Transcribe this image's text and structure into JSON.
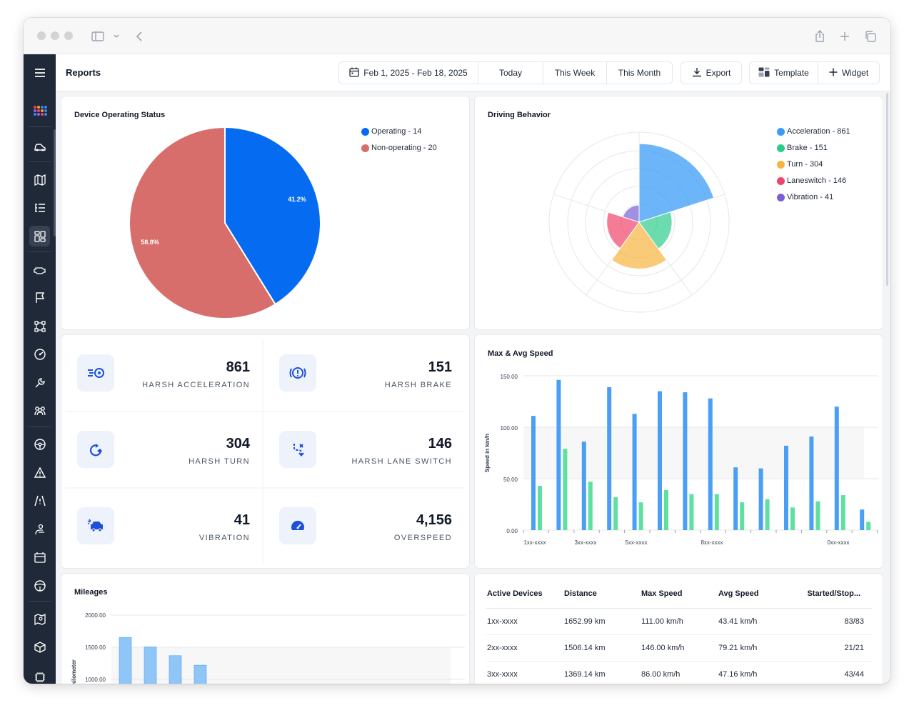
{
  "header": {
    "title": "Reports",
    "date_range": "Feb 1, 2025 - Feb 18, 2025",
    "today": "Today",
    "this_week": "This Week",
    "this_month": "This Month",
    "export": "Export",
    "template": "Template",
    "widget": "Widget"
  },
  "sidebar": {
    "items": [
      "menu-icon",
      "logo-icon",
      "vehicle-crash-icon",
      "map-icon",
      "list-tree-icon",
      "dashboard-icon",
      "engine-icon",
      "flag-icon",
      "route-icon",
      "speedometer-icon",
      "wrench-icon",
      "users-icon",
      "steering-wheel-icon",
      "warning-icon",
      "road-warning-icon",
      "driver-icon",
      "calendar-icon",
      "steering-icon",
      "map-pin-icon",
      "box-icon",
      "chip-icon"
    ]
  },
  "device_status": {
    "title": "Device Operating Status",
    "legend": [
      {
        "label": "Operating - 14",
        "color": "#056cf2"
      },
      {
        "label": "Non-operating - 20",
        "color": "#d86e6b"
      }
    ],
    "slice_labels": [
      "41.2%",
      "58.8%"
    ]
  },
  "driving_behavior": {
    "title": "Driving Behavior",
    "legend": [
      {
        "label": "Acceleration - 861",
        "color": "#3b9cf5"
      },
      {
        "label": "Brake - 151",
        "color": "#2ecc8a"
      },
      {
        "label": "Turn - 304",
        "color": "#f7b53f"
      },
      {
        "label": "Laneswitch - 146",
        "color": "#f0456a"
      },
      {
        "label": "Vibration - 41",
        "color": "#7c5fd6"
      }
    ]
  },
  "stats": [
    {
      "value": "861",
      "label": "HARSH ACCELERATION",
      "icon": "acceleration-icon"
    },
    {
      "value": "151",
      "label": "HARSH BRAKE",
      "icon": "brake-icon"
    },
    {
      "value": "304",
      "label": "HARSH TURN",
      "icon": "turn-icon"
    },
    {
      "value": "146",
      "label": "HARSH LANE SWITCH",
      "icon": "lane-switch-icon"
    },
    {
      "value": "41",
      "label": "VIBRATION",
      "icon": "vibration-icon"
    },
    {
      "value": "4,156",
      "label": "OVERSPEED",
      "icon": "overspeed-icon"
    }
  ],
  "speed_chart": {
    "title": "Max & Avg Speed",
    "ylabel": "Speed in km/h",
    "y_ticks": [
      "150.00",
      "100.00",
      "50.00",
      "0.00"
    ],
    "x_labels": [
      "1xx-xxxx",
      "3xx-xxxx",
      "5xx-xxxx",
      "8xx-xxxx",
      "0xx-xxxx"
    ]
  },
  "mileage_chart": {
    "title": "Mileages",
    "ylabel": "in kilometer",
    "y_ticks": [
      "2000.00",
      "1500.00",
      "1000.00"
    ]
  },
  "chart_data": [
    {
      "type": "pie",
      "title": "Device Operating Status",
      "categories": [
        "Operating",
        "Non-operating"
      ],
      "values": [
        14,
        20
      ],
      "percent": [
        41.2,
        58.8
      ],
      "colors": [
        "#056cf2",
        "#d86e6b"
      ],
      "legend": "top-right"
    },
    {
      "type": "pie",
      "subtype": "nightingale-rose",
      "title": "Driving Behavior",
      "categories": [
        "Acceleration",
        "Brake",
        "Turn",
        "Laneswitch",
        "Vibration"
      ],
      "values": [
        861,
        151,
        304,
        146,
        41
      ],
      "colors": [
        "#3b9cf5",
        "#2ecc8a",
        "#f7b53f",
        "#f0456a",
        "#7c5fd6"
      ],
      "legend": "top-right"
    },
    {
      "type": "bar",
      "title": "Max & Avg Speed",
      "ylabel": "Speed in km/h",
      "ylim": [
        0,
        150
      ],
      "categories": [
        "1xx-xxxx",
        "",
        "3xx-xxxx",
        "",
        "5xx-xxxx",
        "",
        "",
        "8xx-xxxx",
        "",
        "",
        "",
        "",
        "0xx-xxxx",
        ""
      ],
      "series": [
        {
          "values": [
            111,
            146,
            86,
            139,
            113,
            135,
            134,
            128,
            61,
            60,
            82,
            91,
            120,
            20
          ],
          "color": "#4a9ff5"
        },
        {
          "values": [
            43,
            79,
            47,
            32,
            27,
            39,
            35,
            35,
            27,
            30,
            22,
            28,
            34,
            8
          ],
          "color": "#5fe0a0"
        }
      ]
    },
    {
      "type": "bar",
      "title": "Mileages",
      "ylabel": "in kilometer",
      "ylim": [
        1000,
        2000
      ],
      "values": [
        1653,
        1506,
        1369,
        1220
      ],
      "color": "#90c6f7"
    }
  ],
  "devices_table": {
    "headers": [
      "Active Devices",
      "Distance",
      "Max Speed",
      "Avg Speed",
      "Started/Stop..."
    ],
    "rows": [
      [
        "1xx-xxxx",
        "1652.99 km",
        "111.00 km/h",
        "43.41 km/h",
        "83/83"
      ],
      [
        "2xx-xxxx",
        "1506.14 km",
        "146.00 km/h",
        "79.21 km/h",
        "21/21"
      ],
      [
        "3xx-xxxx",
        "1369.14 km",
        "86.00 km/h",
        "47.16 km/h",
        "43/44"
      ]
    ]
  }
}
